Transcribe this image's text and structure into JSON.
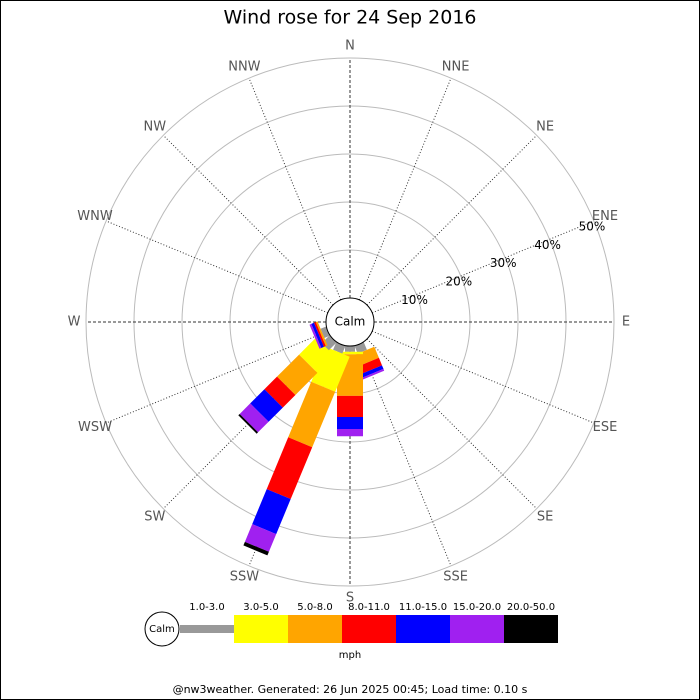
{
  "chart_data": {
    "type": "windrose",
    "title": "Wind rose for 24 Sep 2016",
    "directions": [
      "N",
      "NNE",
      "NE",
      "ENE",
      "E",
      "ESE",
      "SE",
      "SSE",
      "S",
      "SSW",
      "SW",
      "WSW",
      "W",
      "WNW",
      "NW",
      "NNW"
    ],
    "rlim": [
      0,
      50
    ],
    "rticks": [
      {
        "value": 10,
        "label": "10%"
      },
      {
        "value": 20,
        "label": "20%"
      },
      {
        "value": 30,
        "label": "30%"
      },
      {
        "value": 40,
        "label": "40%"
      },
      {
        "value": 50,
        "label": "50%"
      }
    ],
    "calm_label": "Calm",
    "unit": "mph",
    "series": [
      {
        "name": "1.0-3.0",
        "color": "#999999",
        "values": [
          0,
          0,
          0,
          0,
          0,
          0,
          0,
          1.7,
          1.2,
          1.7,
          2.3,
          1.2,
          0,
          0,
          0,
          0
        ]
      },
      {
        "name": "3.0-5.0",
        "color": "#ffff00",
        "values": [
          0,
          0,
          0,
          0,
          0,
          0,
          0,
          0,
          0.5,
          7.9,
          5,
          0,
          0,
          0,
          0,
          0
        ]
      },
      {
        "name": "5.0-8.0",
        "color": "#ffa500",
        "values": [
          0,
          0,
          0,
          0,
          0,
          0,
          0,
          2.5,
          8.7,
          12.5,
          6.5,
          0.4,
          0,
          0,
          0,
          0
        ]
      },
      {
        "name": "8.0-11.0",
        "color": "#ff0000",
        "values": [
          0,
          0,
          0,
          0,
          0,
          0,
          0,
          1.7,
          4.4,
          11.7,
          3.7,
          0.4,
          0,
          0,
          0,
          0
        ]
      },
      {
        "name": "11.0-15.0",
        "color": "#0000ff",
        "values": [
          0,
          0,
          0,
          0,
          0,
          0,
          0,
          0.8,
          2.5,
          7.9,
          4.2,
          0.6,
          0,
          0,
          0,
          0
        ]
      },
      {
        "name": "15.0-20.0",
        "color": "#a020f0",
        "values": [
          0,
          0,
          0,
          0,
          0,
          0,
          0,
          0.4,
          1.5,
          4,
          3.1,
          0.4,
          0,
          0,
          0,
          0
        ]
      },
      {
        "name": "20.0-50.0",
        "color": "#000000",
        "values": [
          0,
          0,
          0,
          0,
          0,
          0,
          0,
          0,
          0,
          0.8,
          0.4,
          0,
          0,
          0,
          0,
          0
        ]
      }
    ],
    "footer": "@nw3weather. Generated: 26 Jun 2025 00:45; Load time: 0.10 s"
  }
}
